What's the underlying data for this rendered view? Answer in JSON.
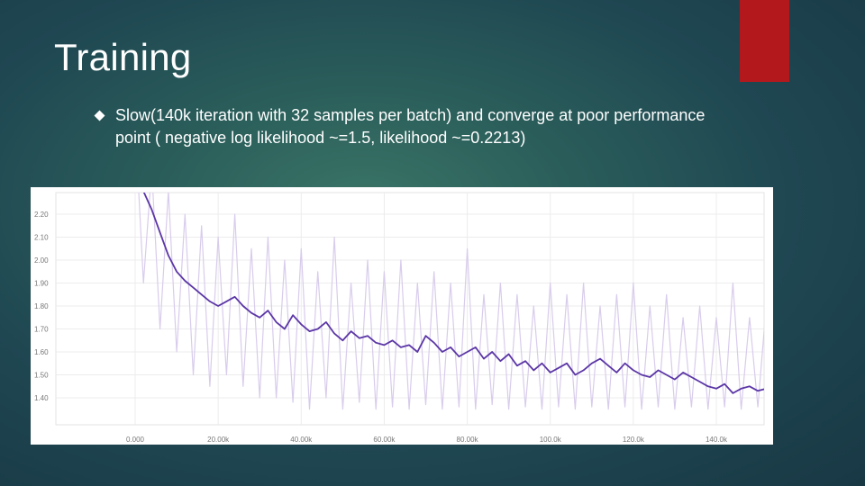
{
  "slide": {
    "title": "Training",
    "bullet_text": "Slow(140k iteration with 32 samples per batch) and converge at poor performance point ( negative log likelihood ~=1.5, likelihood ~=0.2213)",
    "accent_color": "#b3191c",
    "bullet_icon": "diamond-bullet-icon"
  },
  "chart_data": {
    "type": "line",
    "title": "",
    "xlabel": "",
    "ylabel": "",
    "xlim": [
      0,
      160000
    ],
    "ylim": [
      1.35,
      2.25
    ],
    "x_ticks": [
      0,
      20000,
      40000,
      60000,
      80000,
      100000,
      120000,
      140000
    ],
    "x_tick_labels": [
      "0.000",
      "20.00k",
      "40.00k",
      "60.00k",
      "80.00k",
      "100.0k",
      "120.0k",
      "140.0k"
    ],
    "y_ticks": [
      1.4,
      1.5,
      1.6,
      1.7,
      1.8,
      1.9,
      2.0,
      2.1,
      2.2
    ],
    "y_tick_labels": [
      "1.40",
      "1.50",
      "1.60",
      "1.70",
      "1.80",
      "1.90",
      "2.00",
      "2.10",
      "2.20"
    ],
    "grid": true,
    "series": [
      {
        "role": "smoothed",
        "color": "#5b36a6",
        "x": [
          0,
          2000,
          4000,
          6000,
          8000,
          10000,
          12000,
          14000,
          16000,
          18000,
          20000,
          22000,
          24000,
          26000,
          28000,
          30000,
          32000,
          34000,
          36000,
          38000,
          40000,
          42000,
          44000,
          46000,
          48000,
          50000,
          52000,
          54000,
          56000,
          58000,
          60000,
          62000,
          64000,
          66000,
          68000,
          70000,
          72000,
          74000,
          76000,
          78000,
          80000,
          82000,
          84000,
          86000,
          88000,
          90000,
          92000,
          94000,
          96000,
          98000,
          100000,
          102000,
          104000,
          106000,
          108000,
          110000,
          112000,
          114000,
          116000,
          118000,
          120000,
          122000,
          124000,
          126000,
          128000,
          130000,
          132000,
          134000,
          136000,
          138000,
          140000,
          142000,
          144000,
          146000,
          148000,
          150000,
          152000,
          154000,
          156000,
          158000
        ],
        "values": [
          2.34,
          2.3,
          2.22,
          2.12,
          2.02,
          1.95,
          1.91,
          1.88,
          1.85,
          1.82,
          1.8,
          1.82,
          1.84,
          1.8,
          1.77,
          1.75,
          1.78,
          1.73,
          1.7,
          1.76,
          1.72,
          1.69,
          1.7,
          1.73,
          1.68,
          1.65,
          1.69,
          1.66,
          1.67,
          1.64,
          1.63,
          1.65,
          1.62,
          1.63,
          1.6,
          1.67,
          1.64,
          1.6,
          1.62,
          1.58,
          1.6,
          1.62,
          1.57,
          1.6,
          1.56,
          1.59,
          1.54,
          1.56,
          1.52,
          1.55,
          1.51,
          1.53,
          1.55,
          1.5,
          1.52,
          1.55,
          1.57,
          1.54,
          1.51,
          1.55,
          1.52,
          1.5,
          1.49,
          1.52,
          1.5,
          1.48,
          1.51,
          1.49,
          1.47,
          1.45,
          1.44,
          1.46,
          1.42,
          1.44,
          1.45,
          1.43,
          1.44,
          1.46,
          1.5,
          1.52
        ]
      },
      {
        "role": "raw",
        "color": "#d8ccec",
        "x": [
          0,
          2000,
          4000,
          6000,
          8000,
          10000,
          12000,
          14000,
          16000,
          18000,
          20000,
          22000,
          24000,
          26000,
          28000,
          30000,
          32000,
          34000,
          36000,
          38000,
          40000,
          42000,
          44000,
          46000,
          48000,
          50000,
          52000,
          54000,
          56000,
          58000,
          60000,
          62000,
          64000,
          66000,
          68000,
          70000,
          72000,
          74000,
          76000,
          78000,
          80000,
          82000,
          84000,
          86000,
          88000,
          90000,
          92000,
          94000,
          96000,
          98000,
          100000,
          102000,
          104000,
          106000,
          108000,
          110000,
          112000,
          114000,
          116000,
          118000,
          120000,
          122000,
          124000,
          126000,
          128000,
          130000,
          132000,
          134000,
          136000,
          138000,
          140000,
          142000,
          144000,
          146000,
          148000,
          150000,
          152000,
          154000,
          156000,
          158000
        ],
        "values": [
          2.6,
          1.9,
          2.4,
          1.7,
          2.3,
          1.6,
          2.2,
          1.5,
          2.15,
          1.45,
          2.1,
          1.5,
          2.2,
          1.45,
          2.05,
          1.4,
          2.1,
          1.4,
          2.0,
          1.38,
          2.05,
          1.35,
          1.95,
          1.4,
          2.1,
          1.35,
          1.9,
          1.38,
          2.0,
          1.35,
          1.95,
          1.36,
          2.0,
          1.35,
          1.9,
          1.37,
          1.95,
          1.35,
          1.9,
          1.36,
          2.05,
          1.35,
          1.85,
          1.37,
          1.9,
          1.35,
          1.85,
          1.36,
          1.8,
          1.35,
          1.9,
          1.36,
          1.85,
          1.35,
          1.9,
          1.36,
          1.8,
          1.35,
          1.85,
          1.36,
          1.9,
          1.35,
          1.8,
          1.36,
          1.85,
          1.35,
          1.75,
          1.36,
          1.8,
          1.35,
          1.75,
          1.36,
          1.9,
          1.35,
          1.75,
          1.36,
          1.8,
          1.35,
          1.85,
          1.4
        ]
      }
    ]
  }
}
